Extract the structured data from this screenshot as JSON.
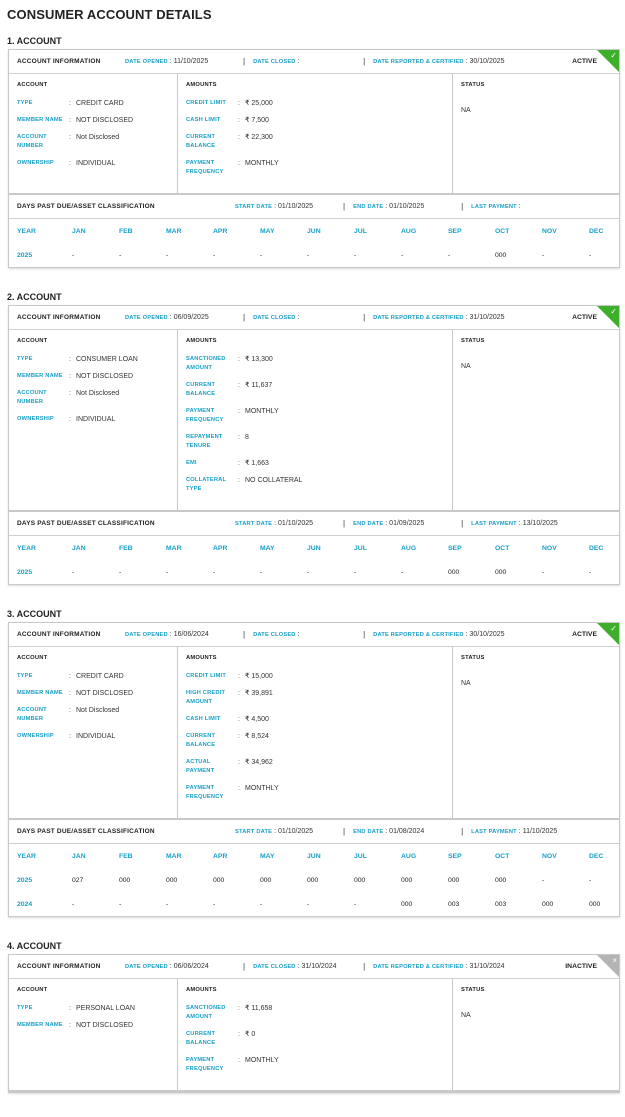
{
  "page_title": "CONSUMER ACCOUNT DETAILS",
  "labels": {
    "account_information": "ACCOUNT INFORMATION",
    "date_opened": "DATE OPENED",
    "date_closed": "DATE CLOSED",
    "date_reported": "DATE REPORTED & CERTIFIED",
    "account": "ACCOUNT",
    "amounts": "AMOUNTS",
    "status": "STATUS",
    "dpd_title": "DAYS PAST DUE/ASSET CLASSIFICATION",
    "start_date": "START DATE",
    "end_date": "END DATE",
    "last_payment": "LAST PAYMENT",
    "year": "YEAR",
    "months": [
      "JAN",
      "FEB",
      "MAR",
      "APR",
      "MAY",
      "JUN",
      "JUL",
      "AUG",
      "SEP",
      "OCT",
      "NOV",
      "DEC"
    ]
  },
  "colors": {
    "accent": "#17a0c8",
    "active": "#3fae2a",
    "inactive": "#b4b4b4"
  },
  "accounts": [
    {
      "heading": "1. ACCOUNT",
      "status_label": "ACTIVE",
      "active": true,
      "status_icon": "check-icon",
      "date_opened": "11/10/2025",
      "date_closed": "",
      "date_reported": "30/10/2025",
      "account_fields": [
        {
          "label": "TYPE",
          "value": "CREDIT CARD"
        },
        {
          "label": "MEMBER NAME",
          "value": "NOT DISCLOSED"
        },
        {
          "label": "ACCOUNT NUMBER",
          "value": "Not Disclosed"
        },
        {
          "label": "OWNERSHIP",
          "value": "INDIVIDUAL"
        }
      ],
      "amounts_left": [
        {
          "label": "CREDIT LIMIT",
          "value": "₹ 25,000"
        },
        {
          "label": "CASH LIMIT",
          "value": "₹ 7,500"
        },
        {
          "label": "CURRENT BALANCE",
          "value": "₹ 22,300"
        }
      ],
      "amounts_right": [
        {
          "label": "PAYMENT FREQUENCY",
          "value": "MONTHLY"
        }
      ],
      "status_value": "NA",
      "dpd": {
        "start_date": "01/10/2025",
        "end_date": "01/10/2025",
        "last_payment": "",
        "rows": [
          {
            "year": "2025",
            "values": [
              "-",
              "-",
              "-",
              "-",
              "-",
              "-",
              "-",
              "-",
              "-",
              "000",
              "-",
              "-"
            ]
          }
        ]
      }
    },
    {
      "heading": "2. ACCOUNT",
      "status_label": "ACTIVE",
      "active": true,
      "status_icon": "check-icon",
      "date_opened": "06/09/2025",
      "date_closed": "",
      "date_reported": "31/10/2025",
      "account_fields": [
        {
          "label": "TYPE",
          "value": "CONSUMER LOAN"
        },
        {
          "label": "MEMBER NAME",
          "value": "NOT DISCLOSED"
        },
        {
          "label": "ACCOUNT NUMBER",
          "value": "Not Disclosed"
        },
        {
          "label": "OWNERSHIP",
          "value": "INDIVIDUAL"
        }
      ],
      "amounts_left": [
        {
          "label": "SANCTIONED AMOUNT",
          "value": "₹ 13,300"
        },
        {
          "label": "CURRENT BALANCE",
          "value": "₹ 11,637"
        }
      ],
      "amounts_right": [
        {
          "label": "PAYMENT FREQUENCY",
          "value": "MONTHLY"
        },
        {
          "label": "REPAYMENT TENURE",
          "value": "8"
        },
        {
          "label": "EMI",
          "value": "₹ 1,663"
        },
        {
          "label": "COLLATERAL TYPE",
          "value": "NO COLLATERAL"
        }
      ],
      "status_value": "NA",
      "dpd": {
        "start_date": "01/10/2025",
        "end_date": "01/09/2025",
        "last_payment": "13/10/2025",
        "rows": [
          {
            "year": "2025",
            "values": [
              "-",
              "-",
              "-",
              "-",
              "-",
              "-",
              "-",
              "-",
              "000",
              "000",
              "-",
              "-"
            ]
          }
        ]
      }
    },
    {
      "heading": "3. ACCOUNT",
      "status_label": "ACTIVE",
      "active": true,
      "status_icon": "check-icon",
      "date_opened": "16/06/2024",
      "date_closed": "",
      "date_reported": "30/10/2025",
      "account_fields": [
        {
          "label": "TYPE",
          "value": "CREDIT CARD"
        },
        {
          "label": "MEMBER NAME",
          "value": "NOT DISCLOSED"
        },
        {
          "label": "ACCOUNT NUMBER",
          "value": "Not Disclosed"
        },
        {
          "label": "OWNERSHIP",
          "value": "INDIVIDUAL"
        }
      ],
      "amounts_left": [
        {
          "label": "CREDIT LIMIT",
          "value": "₹ 15,000"
        },
        {
          "label": "HIGH CREDIT AMOUNT",
          "value": "₹ 39,891"
        },
        {
          "label": "CASH LIMIT",
          "value": "₹ 4,500"
        },
        {
          "label": "CURRENT BALANCE",
          "value": "₹ 8,524"
        },
        {
          "label": "ACTUAL PAYMENT",
          "value": "₹ 34,962"
        }
      ],
      "amounts_right": [
        {
          "label": "PAYMENT FREQUENCY",
          "value": "MONTHLY"
        }
      ],
      "status_value": "NA",
      "dpd": {
        "start_date": "01/10/2025",
        "end_date": "01/08/2024",
        "last_payment": "11/10/2025",
        "rows": [
          {
            "year": "2025",
            "values": [
              "027",
              "000",
              "000",
              "000",
              "000",
              "000",
              "000",
              "000",
              "000",
              "000",
              "-",
              "-"
            ]
          },
          {
            "year": "2024",
            "values": [
              "-",
              "-",
              "-",
              "-",
              "-",
              "-",
              "-",
              "000",
              "003",
              "003",
              "000",
              "000"
            ]
          }
        ]
      }
    },
    {
      "heading": "4. ACCOUNT",
      "status_label": "INACTIVE",
      "active": false,
      "status_icon": "close-icon",
      "date_opened": "06/06/2024",
      "date_closed": "31/10/2024",
      "date_reported": "31/10/2024",
      "account_fields": [
        {
          "label": "TYPE",
          "value": "PERSONAL LOAN"
        },
        {
          "label": "MEMBER NAME",
          "value": "NOT DISCLOSED"
        }
      ],
      "amounts_left": [
        {
          "label": "SANCTIONED AMOUNT",
          "value": "₹ 11,658"
        },
        {
          "label": "CURRENT BALANCE",
          "value": "₹ 0"
        }
      ],
      "amounts_right": [
        {
          "label": "PAYMENT FREQUENCY",
          "value": "MONTHLY"
        }
      ],
      "status_value": "NA"
    }
  ]
}
